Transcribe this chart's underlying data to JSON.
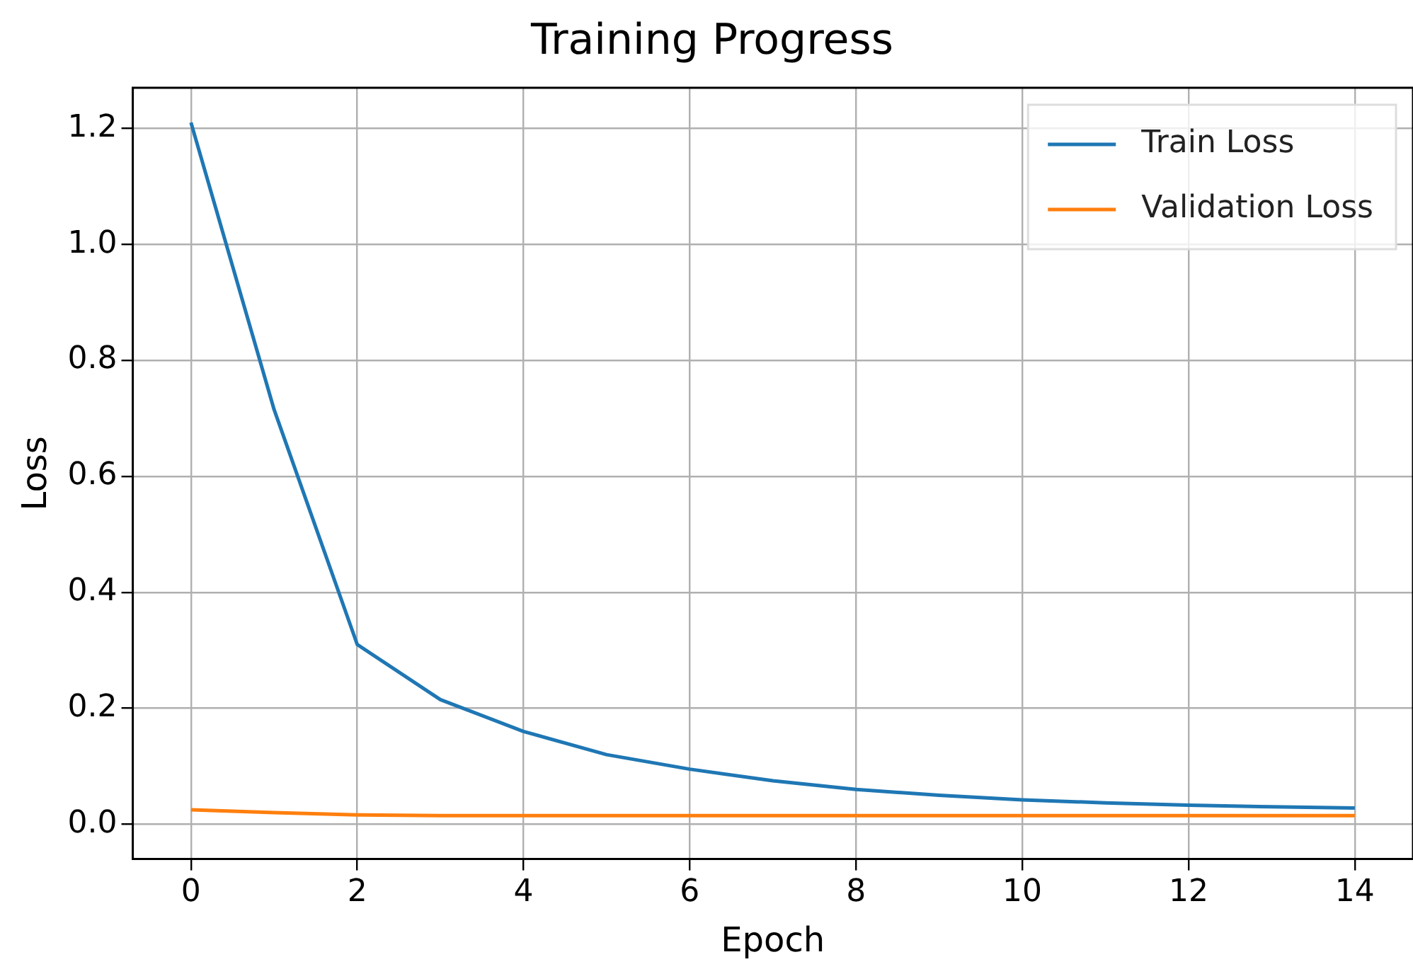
{
  "chart_data": {
    "type": "line",
    "title": "Training Progress",
    "xlabel": "Epoch",
    "ylabel": "Loss",
    "x": [
      0,
      1,
      2,
      3,
      4,
      5,
      6,
      7,
      8,
      9,
      10,
      11,
      12,
      13,
      14
    ],
    "series": [
      {
        "name": "Train Loss",
        "color": "#1f77b4",
        "values": [
          1.21,
          0.715,
          0.31,
          0.215,
          0.16,
          0.12,
          0.095,
          0.075,
          0.06,
          0.05,
          0.042,
          0.037,
          0.033,
          0.03,
          0.028
        ]
      },
      {
        "name": "Validation Loss",
        "color": "#ff7f0e",
        "values": [
          0.025,
          0.02,
          0.016,
          0.015,
          0.015,
          0.015,
          0.015,
          0.015,
          0.015,
          0.015,
          0.015,
          0.015,
          0.015,
          0.015,
          0.015
        ]
      }
    ],
    "xlim": [
      -0.7,
      14.7
    ],
    "ylim": [
      -0.06,
      1.27
    ],
    "xticks": [
      0,
      2,
      4,
      6,
      8,
      10,
      12,
      14
    ],
    "yticks": [
      {
        "value": 0,
        "label": "0.0"
      },
      {
        "value": 0.2,
        "label": "0.2"
      },
      {
        "value": 0.4,
        "label": "0.4"
      },
      {
        "value": 0.6,
        "label": "0.6"
      },
      {
        "value": 0.8,
        "label": "0.8"
      },
      {
        "value": 1.0,
        "label": "1.0"
      },
      {
        "value": 1.2,
        "label": "1.2"
      }
    ],
    "grid": true,
    "legend": "top right",
    "marker": "none",
    "line_style": "solid"
  }
}
